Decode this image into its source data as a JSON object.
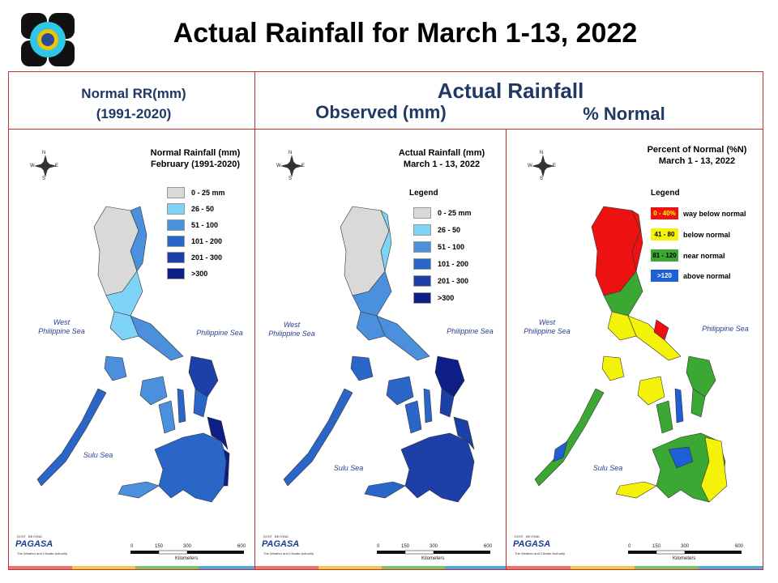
{
  "title": "Actual Rainfall for March 1-13, 2022",
  "headers": {
    "normal_line1": "Normal RR(mm)",
    "normal_line2": "(1991-2020)",
    "actual": "Actual Rainfall",
    "observed": "Observed (mm)",
    "percent": "% Normal"
  },
  "panels": [
    {
      "id": "normal",
      "title_line1": "Normal Rainfall (mm)",
      "title_line2": "February (1991-2020)",
      "legend_heading": "",
      "legend": [
        {
          "label": "0 - 25 mm",
          "color": "#d9d9d9"
        },
        {
          "label": "26 - 50",
          "color": "#7fd3f7"
        },
        {
          "label": "51 - 100",
          "color": "#4a90dc"
        },
        {
          "label": "101 - 200",
          "color": "#2a66c8"
        },
        {
          "label": "201 - 300",
          "color": "#1c3fa8"
        },
        {
          "label": ">300",
          "color": "#0d1f87"
        }
      ]
    },
    {
      "id": "observed",
      "title_line1": "Actual Rainfall (mm)",
      "title_line2": "March 1 - 13, 2022",
      "legend_heading": "Legend",
      "legend": [
        {
          "label": "0 - 25 mm",
          "color": "#d9d9d9"
        },
        {
          "label": "26 - 50",
          "color": "#7fd3f7"
        },
        {
          "label": "51 - 100",
          "color": "#4a90dc"
        },
        {
          "label": "101 - 200",
          "color": "#2a66c8"
        },
        {
          "label": "201 - 300",
          "color": "#1c3fa8"
        },
        {
          "label": ">300",
          "color": "#0d1f87"
        }
      ]
    },
    {
      "id": "percent",
      "title_line1": "Percent of Normal (%N)",
      "title_line2": "March 1 - 13, 2022",
      "legend_heading": "Legend",
      "legend": [
        {
          "box": "0 - 40%",
          "label": "way below normal",
          "color": "#ee1111"
        },
        {
          "box": "41 - 80",
          "label": "below normal",
          "color": "#f5f20a"
        },
        {
          "box": "81 - 120",
          "label": "near normal",
          "color": "#3aa832"
        },
        {
          "box": ">120",
          "label": "above normal",
          "color": "#1f5fd6"
        }
      ]
    }
  ],
  "sea_labels": {
    "west_line1": "West",
    "west_line2": "Philippine Sea",
    "east": "Philippine Sea",
    "sulu": "Sulu Sea"
  },
  "compass": {
    "n": "N",
    "s": "S",
    "e": "E",
    "w": "W"
  },
  "scale": {
    "ticks": [
      "0",
      "150",
      "300",
      "600"
    ],
    "unit": "Kilometers"
  },
  "branding": {
    "dost": "DOST",
    "beyond": "BEYOND",
    "name": "PAGASA",
    "tagline": "The Weather and Climate Authority"
  },
  "footer_colors": [
    "#e8746a",
    "#f2c94c",
    "#7cc26b",
    "#4fa8e0"
  ]
}
